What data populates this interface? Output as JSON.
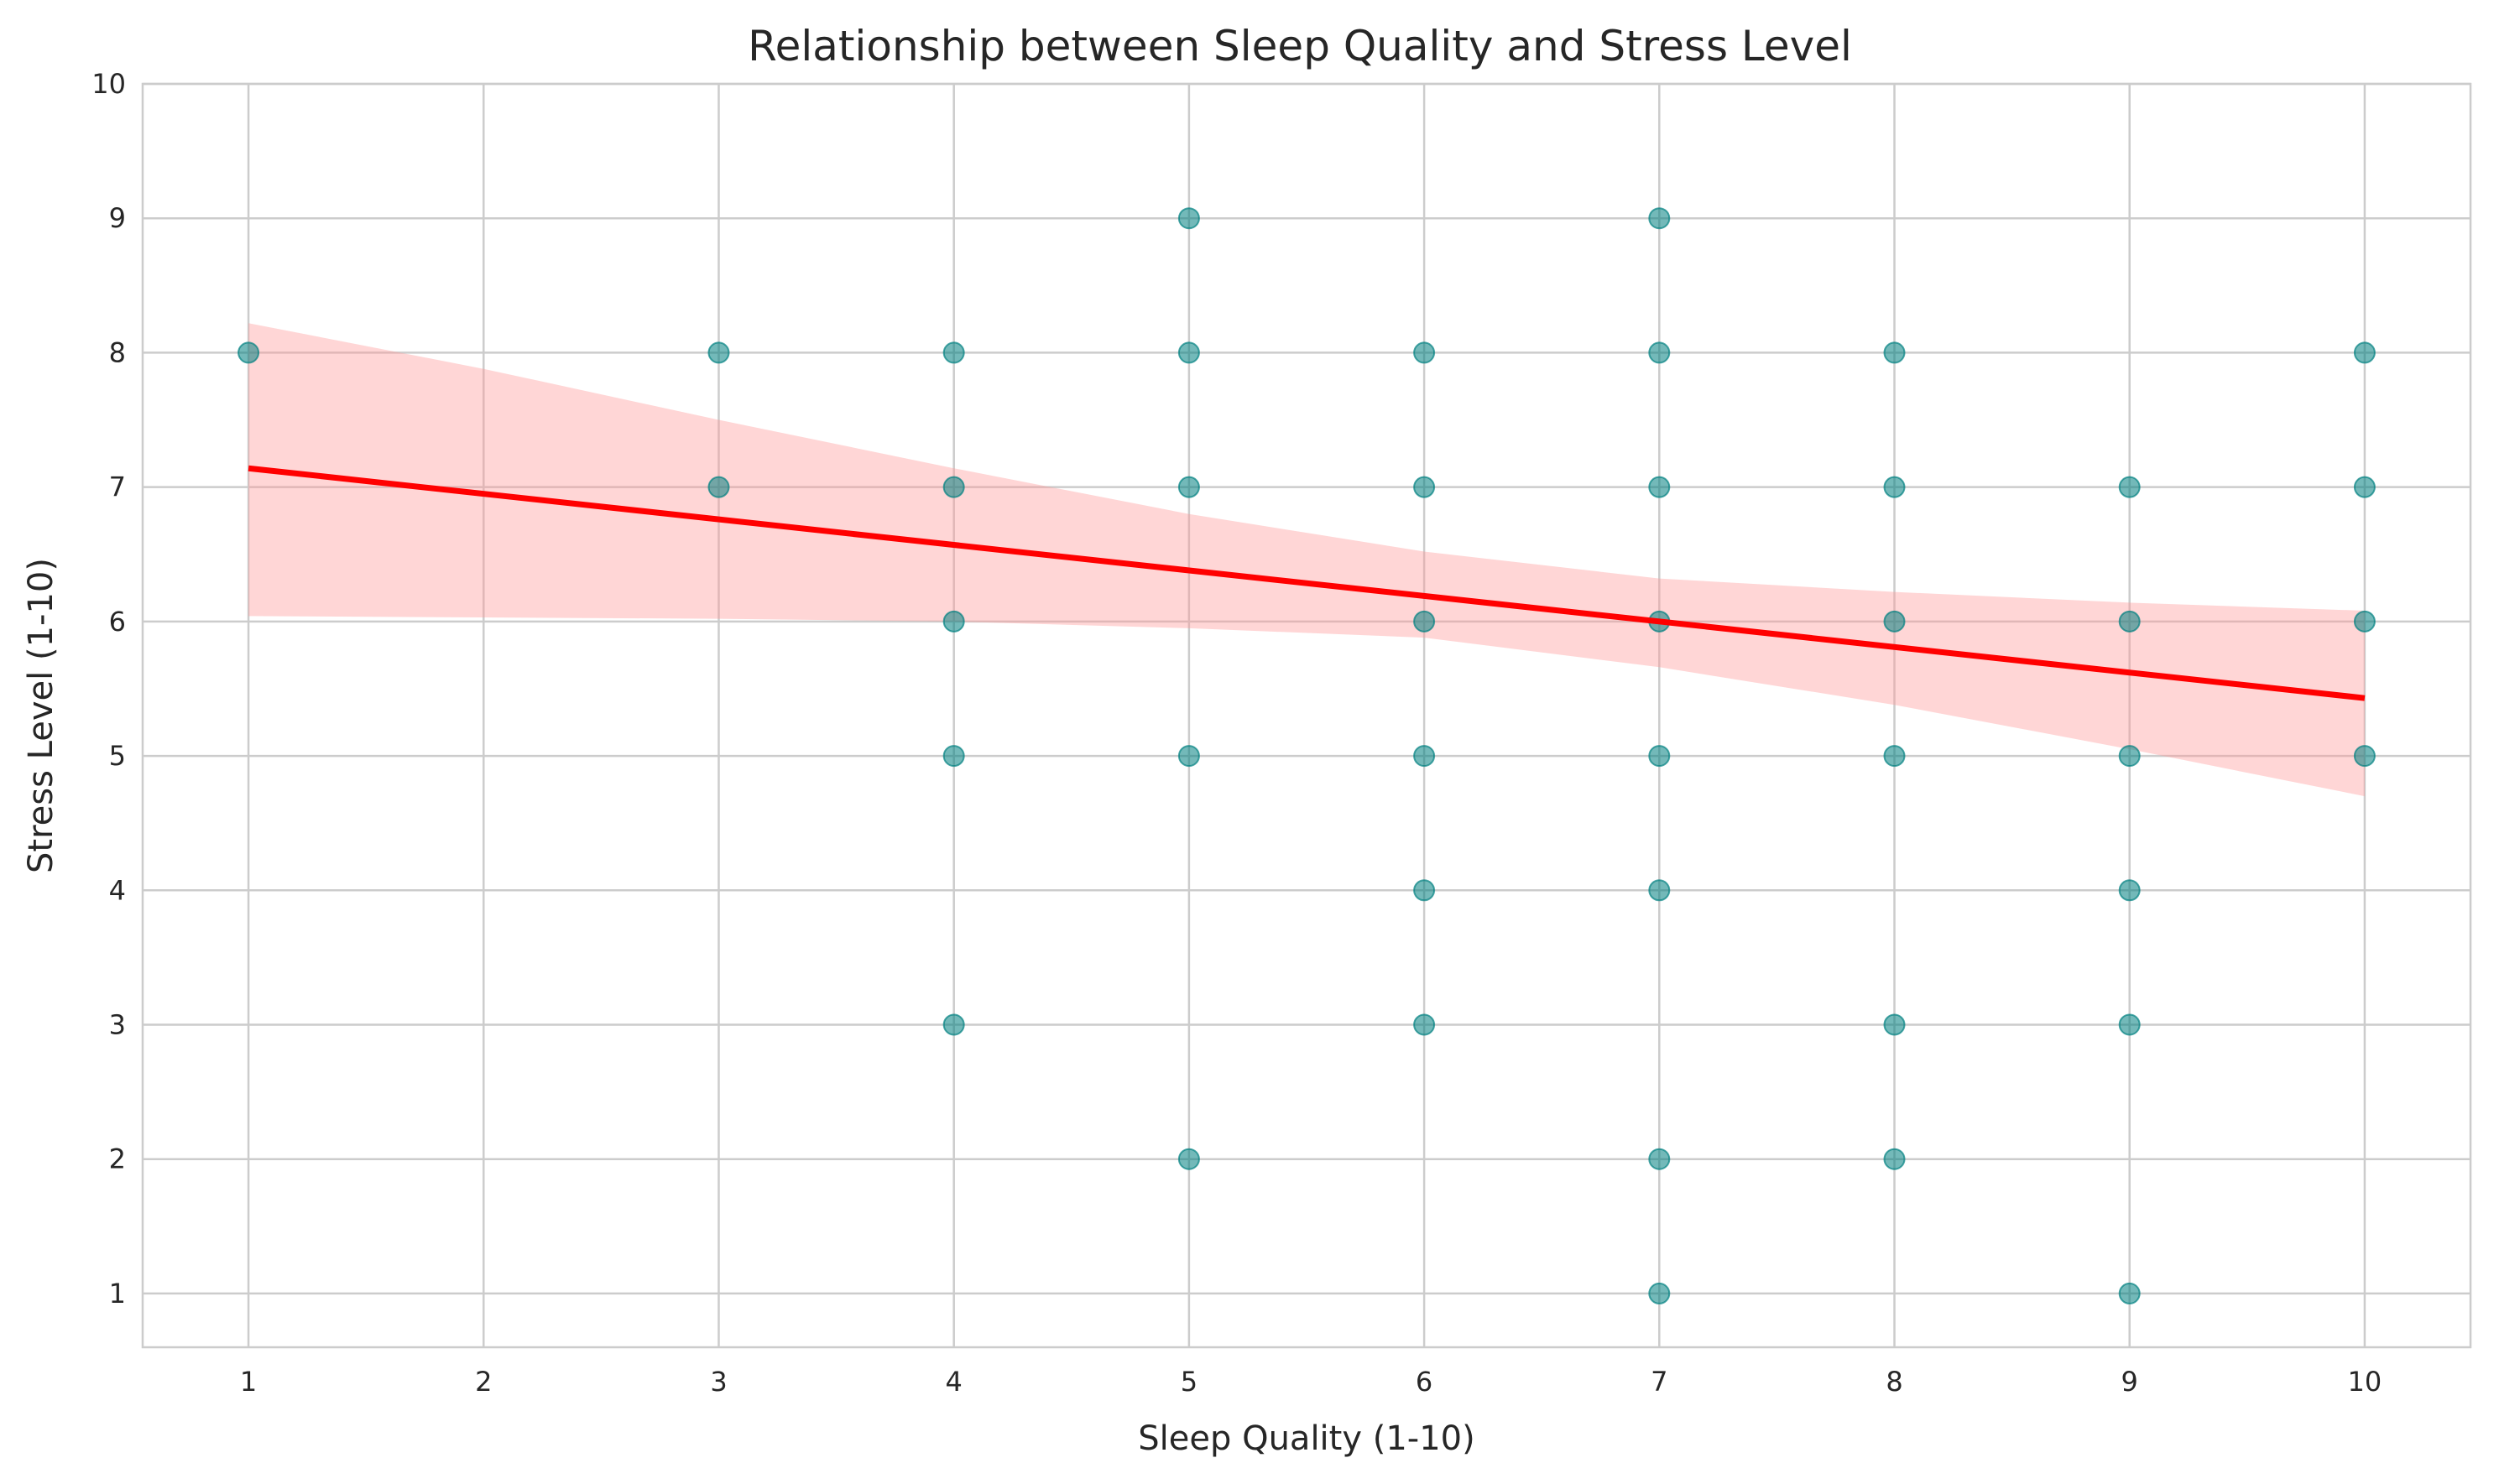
{
  "chart_data": {
    "type": "scatter",
    "title": "Relationship between Sleep Quality and Stress Level",
    "xlabel": "Sleep Quality (1-10)",
    "ylabel": "Stress Level (1-10)",
    "xlim": [
      0.55,
      10.45
    ],
    "ylim": [
      0.6,
      10
    ],
    "xticks": [
      1,
      2,
      3,
      4,
      5,
      6,
      7,
      8,
      9,
      10
    ],
    "yticks": [
      1,
      2,
      3,
      4,
      5,
      6,
      7,
      8,
      9,
      10
    ],
    "grid": true,
    "colors": {
      "points": "#008080",
      "regression_line": "#ff0000",
      "confidence_band": "#ff9999"
    },
    "points": [
      {
        "x": 1,
        "y": 8
      },
      {
        "x": 3,
        "y": 8
      },
      {
        "x": 3,
        "y": 7
      },
      {
        "x": 4,
        "y": 8
      },
      {
        "x": 4,
        "y": 7
      },
      {
        "x": 4,
        "y": 6
      },
      {
        "x": 4,
        "y": 5
      },
      {
        "x": 4,
        "y": 3
      },
      {
        "x": 5,
        "y": 9
      },
      {
        "x": 5,
        "y": 8
      },
      {
        "x": 5,
        "y": 7
      },
      {
        "x": 5,
        "y": 5
      },
      {
        "x": 5,
        "y": 2
      },
      {
        "x": 6,
        "y": 8
      },
      {
        "x": 6,
        "y": 7
      },
      {
        "x": 6,
        "y": 6
      },
      {
        "x": 6,
        "y": 5
      },
      {
        "x": 6,
        "y": 4
      },
      {
        "x": 6,
        "y": 3
      },
      {
        "x": 7,
        "y": 9
      },
      {
        "x": 7,
        "y": 8
      },
      {
        "x": 7,
        "y": 7
      },
      {
        "x": 7,
        "y": 6
      },
      {
        "x": 7,
        "y": 5
      },
      {
        "x": 7,
        "y": 4
      },
      {
        "x": 7,
        "y": 2
      },
      {
        "x": 7,
        "y": 1
      },
      {
        "x": 8,
        "y": 8
      },
      {
        "x": 8,
        "y": 7
      },
      {
        "x": 8,
        "y": 6
      },
      {
        "x": 8,
        "y": 5
      },
      {
        "x": 8,
        "y": 3
      },
      {
        "x": 8,
        "y": 2
      },
      {
        "x": 9,
        "y": 7
      },
      {
        "x": 9,
        "y": 6
      },
      {
        "x": 9,
        "y": 5
      },
      {
        "x": 9,
        "y": 4
      },
      {
        "x": 9,
        "y": 3
      },
      {
        "x": 9,
        "y": 1
      },
      {
        "x": 10,
        "y": 8
      },
      {
        "x": 10,
        "y": 7
      },
      {
        "x": 10,
        "y": 6
      },
      {
        "x": 10,
        "y": 5
      }
    ],
    "regression_line": [
      {
        "x": 1,
        "y": 7.14
      },
      {
        "x": 10,
        "y": 5.43
      }
    ],
    "confidence_band": [
      {
        "x": 1,
        "lower": 6.04,
        "upper": 8.22
      },
      {
        "x": 2,
        "lower": 6.03,
        "upper": 7.88
      },
      {
        "x": 3,
        "lower": 6.02,
        "upper": 7.5
      },
      {
        "x": 4,
        "lower": 6.0,
        "upper": 7.14
      },
      {
        "x": 5,
        "lower": 5.95,
        "upper": 6.8
      },
      {
        "x": 6,
        "lower": 5.88,
        "upper": 6.52
      },
      {
        "x": 7,
        "lower": 5.66,
        "upper": 6.32
      },
      {
        "x": 8,
        "lower": 5.38,
        "upper": 6.22
      },
      {
        "x": 9,
        "lower": 5.05,
        "upper": 6.14
      },
      {
        "x": 10,
        "lower": 4.7,
        "upper": 6.08
      }
    ]
  }
}
